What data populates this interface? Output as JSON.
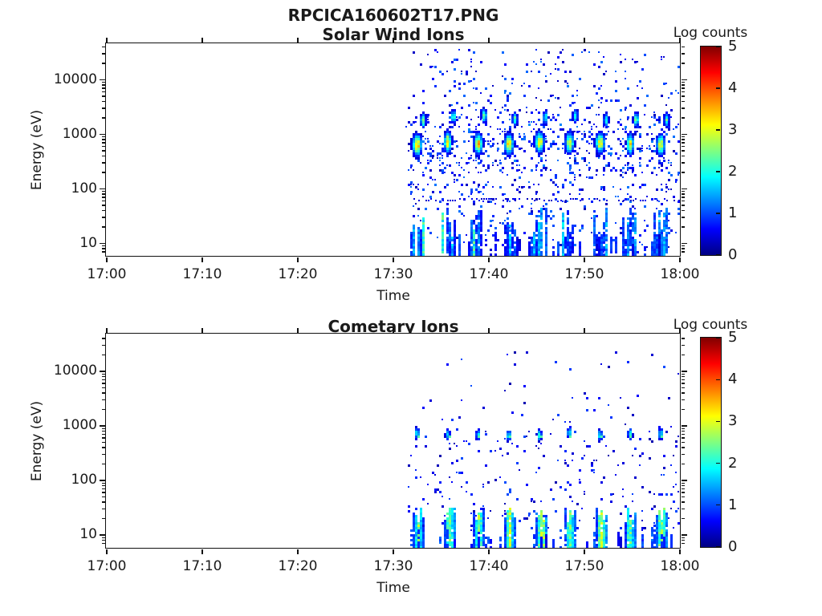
{
  "page_title": "RPCICA160602T17.PNG",
  "axis_color": "#111111",
  "text_color": "#1a1a1a",
  "chart_data": [
    {
      "type": "heatmap",
      "title": "Solar Wind Ions",
      "xlabel": "Time",
      "ylabel": "Energy (eV)",
      "colorbar_label": "Log counts",
      "colorbar_ticks": [
        "0",
        "1",
        "2",
        "3",
        "4",
        "5"
      ],
      "clim": [
        0,
        5
      ],
      "colormap": "jet",
      "x_tick_labels": [
        "17:00",
        "17:10",
        "17:20",
        "17:30",
        "17:40",
        "17:50",
        "18:00"
      ],
      "x_range_minutes": [
        0,
        60
      ],
      "y_tick_labels": [
        "10",
        "100",
        "1000",
        "10000"
      ],
      "y_range_ev": [
        6,
        45000
      ],
      "data_start_min": 31.9,
      "data_end_min": 60,
      "scan_period_min": 3.2,
      "scan_times_min": [
        32.5,
        35.7,
        38.9,
        42.1,
        45.3,
        48.45,
        51.65,
        54.8,
        58.0
      ],
      "features": {
        "main_beam": {
          "energy_ev": 660,
          "peak_log_counts": 3.4
        },
        "secondary_beam": {
          "energy_ev": 2000,
          "peak_log_counts": 2.3,
          "x_offset_min": 0.45
        },
        "background_scatter": {
          "points": 900,
          "energy_range_ev": [
            8,
            40000
          ],
          "log_counts_range": [
            0.25,
            1.2
          ]
        },
        "dotted_line_ev": 65,
        "low_energy_band": {
          "energy_range_ev": [
            6,
            34
          ],
          "log_counts_range": [
            0.6,
            2.2
          ]
        }
      }
    },
    {
      "type": "heatmap",
      "title": "Cometary Ions",
      "xlabel": "Time",
      "ylabel": "Energy (eV)",
      "colorbar_label": "Log counts",
      "colorbar_ticks": [
        "0",
        "1",
        "2",
        "3",
        "4",
        "5"
      ],
      "clim": [
        0,
        5
      ],
      "colormap": "jet",
      "x_tick_labels": [
        "17:00",
        "17:10",
        "17:20",
        "17:30",
        "17:40",
        "17:50",
        "18:00"
      ],
      "x_range_minutes": [
        0,
        60
      ],
      "y_tick_labels": [
        "10",
        "100",
        "1000",
        "10000"
      ],
      "y_range_ev": [
        6,
        45000
      ],
      "data_start_min": 31.9,
      "data_end_min": 60,
      "scan_period_min": 3.2,
      "scan_times_min": [
        32.5,
        35.7,
        38.9,
        42.1,
        45.3,
        48.45,
        51.65,
        54.8,
        58.0
      ],
      "features": {
        "ion_beam": {
          "energy_ev": 700,
          "peak_log_counts": 2.3
        },
        "background_scatter": {
          "points": 300,
          "energy_range_ev": [
            10,
            15000
          ],
          "log_counts_range": [
            0.2,
            1.0
          ]
        },
        "low_energy_band": {
          "energy_range_ev": [
            6,
            32
          ],
          "log_counts_range": [
            1.0,
            3.0
          ]
        }
      }
    }
  ]
}
